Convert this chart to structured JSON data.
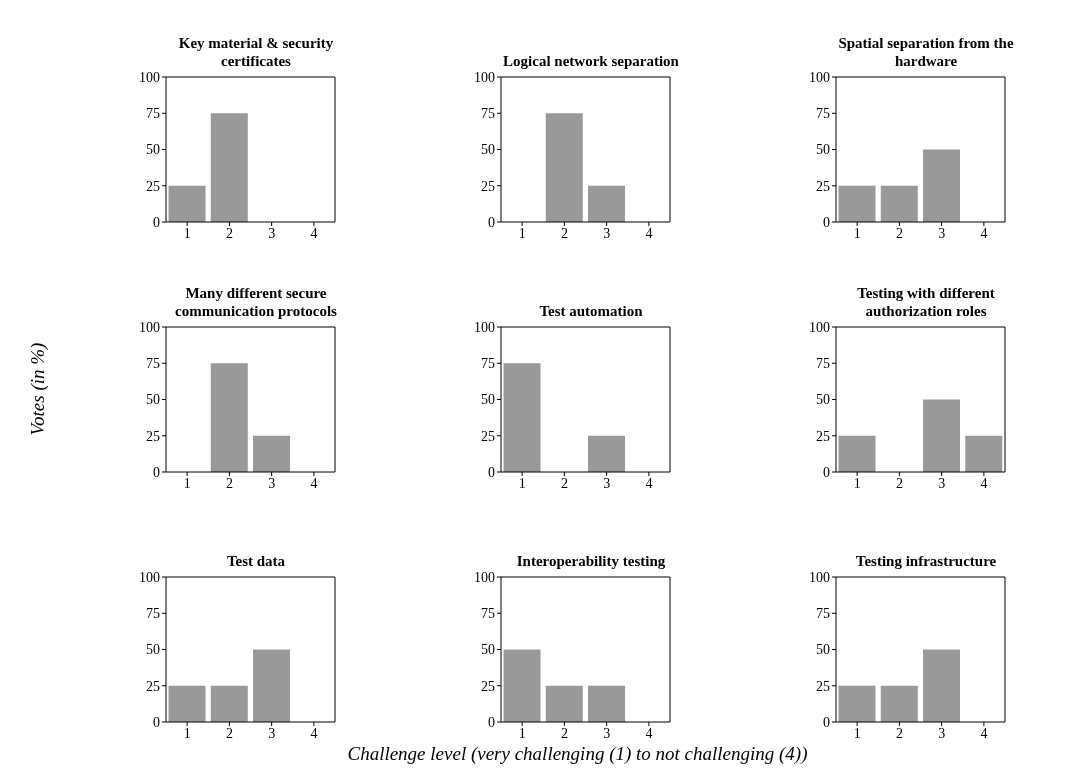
{
  "chart_data": [
    {
      "type": "bar",
      "title": "Key material & security certificates",
      "categories": [
        "1",
        "2",
        "3",
        "4"
      ],
      "values": [
        25,
        75,
        0,
        0
      ],
      "color": "#999999",
      "ylim": [
        0,
        100
      ],
      "yticks": [
        0,
        25,
        50,
        75,
        100
      ]
    },
    {
      "type": "bar",
      "title": "Logical network separation",
      "categories": [
        "1",
        "2",
        "3",
        "4"
      ],
      "values": [
        0,
        75,
        25,
        0
      ],
      "color": "#999999",
      "ylim": [
        0,
        100
      ],
      "yticks": [
        0,
        25,
        50,
        75,
        100
      ]
    },
    {
      "type": "bar",
      "title": "Spatial separation from the hardware",
      "categories": [
        "1",
        "2",
        "3",
        "4"
      ],
      "values": [
        25,
        25,
        50,
        0
      ],
      "color": "#999999",
      "ylim": [
        0,
        100
      ],
      "yticks": [
        0,
        25,
        50,
        75,
        100
      ]
    },
    {
      "type": "bar",
      "title": "Many different secure communication protocols",
      "ylabel": "Votes (in %)",
      "categories": [
        "1",
        "2",
        "3",
        "4"
      ],
      "values": [
        0,
        75,
        25,
        0
      ],
      "color": "#999999",
      "ylim": [
        0,
        100
      ],
      "yticks": [
        0,
        25,
        50,
        75,
        100
      ]
    },
    {
      "type": "bar",
      "title": "Test automation",
      "categories": [
        "1",
        "2",
        "3",
        "4"
      ],
      "values": [
        75,
        0,
        25,
        0
      ],
      "color": "#999999",
      "ylim": [
        0,
        100
      ],
      "yticks": [
        0,
        25,
        50,
        75,
        100
      ]
    },
    {
      "type": "bar",
      "title": "Testing with different authorization roles",
      "categories": [
        "1",
        "2",
        "3",
        "4"
      ],
      "values": [
        25,
        0,
        50,
        25
      ],
      "color": "#999999",
      "ylim": [
        0,
        100
      ],
      "yticks": [
        0,
        25,
        50,
        75,
        100
      ]
    },
    {
      "type": "bar",
      "title": "Test data",
      "categories": [
        "1",
        "2",
        "3",
        "4"
      ],
      "values": [
        25,
        25,
        50,
        0
      ],
      "color": "#999999",
      "ylim": [
        0,
        100
      ],
      "yticks": [
        0,
        25,
        50,
        75,
        100
      ]
    },
    {
      "type": "bar",
      "title": "Interoperability testing",
      "xlabel": "Challenge level (very challenging (1) to not challenging (4))",
      "categories": [
        "1",
        "2",
        "3",
        "4"
      ],
      "values": [
        50,
        25,
        25,
        0
      ],
      "color": "#999999",
      "ylim": [
        0,
        100
      ],
      "yticks": [
        0,
        25,
        50,
        75,
        100
      ]
    },
    {
      "type": "bar",
      "title": "Testing infrastructure",
      "categories": [
        "1",
        "2",
        "3",
        "4"
      ],
      "values": [
        25,
        25,
        50,
        0
      ],
      "color": "#999999",
      "ylim": [
        0,
        100
      ],
      "yticks": [
        0,
        25,
        50,
        75,
        100
      ]
    }
  ]
}
